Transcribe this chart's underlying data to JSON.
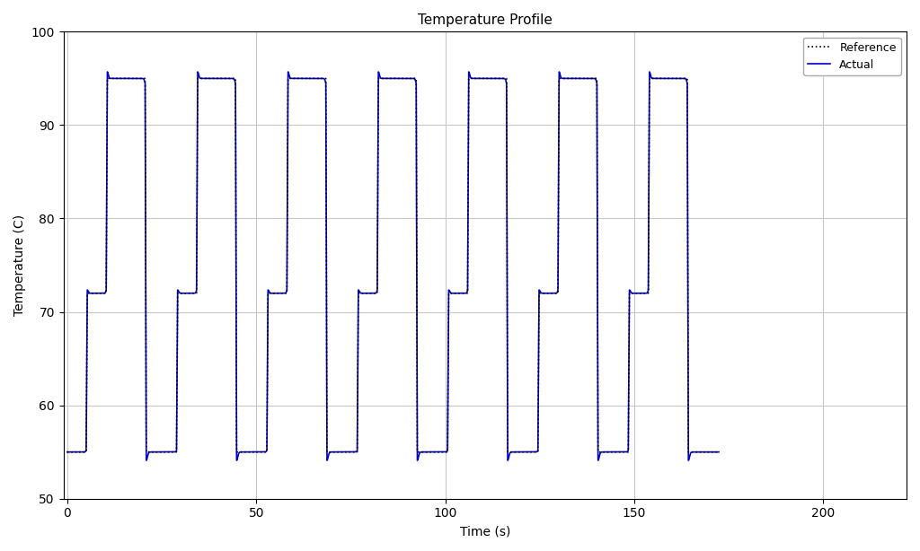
{
  "title": "Temperature Profile",
  "xlabel": "Time (s)",
  "ylabel": "Temperature (C)",
  "ylim": [
    50,
    100
  ],
  "xlim": [
    -1,
    222
  ],
  "yticks": [
    50,
    60,
    70,
    80,
    90,
    100
  ],
  "xticks": [
    0,
    50,
    100,
    150,
    200
  ],
  "grid_color": "#c8c8c8",
  "ref_color": "black",
  "actual_color": "#0000cc",
  "ref_linewidth": 1.2,
  "actual_linewidth": 1.2,
  "background_color": "white",
  "legend_labels": [
    "Reference",
    "Actual"
  ],
  "T_low": 55.0,
  "T_anneal": 72.0,
  "T_denature": 95.0,
  "n_cycles": 7,
  "t0_hold": 5.0,
  "ramp_time": 0.3,
  "anneal_hold": 5.0,
  "denature_hold": 10.0,
  "low_hold": 8.0,
  "overshoot_anneal_amp": 0.35,
  "overshoot_anneal_sigma": 0.25,
  "overshoot_den_amp": 0.7,
  "overshoot_den_sigma": 0.25,
  "undershoot_low_amp": 0.9,
  "undershoot_low_sigma": 0.3
}
